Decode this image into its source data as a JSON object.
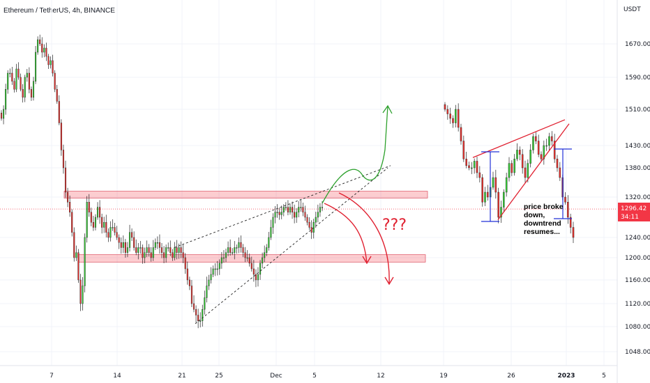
{
  "chart_data": {
    "type": "candlestick",
    "title": "Ethereum / TetherUS, 4h, BINANCE",
    "y_unit": "USDT",
    "y_ticks": [
      1048,
      1080,
      1120,
      1160,
      1200,
      1240,
      1320,
      1380,
      1430,
      1510,
      1590,
      1670
    ],
    "y_tick_labels": [
      "1048.00",
      "1080.00",
      "1120.00",
      "1160.00",
      "1200.00",
      "1240.00",
      "1320.00",
      "1380.00",
      "1430.00",
      "1510.00",
      "1590.00",
      "1670.00"
    ],
    "x_tick_labels": [
      "7",
      "14",
      "21",
      "25",
      "Dec",
      "5",
      "12",
      "19",
      "26",
      "2023",
      "5"
    ],
    "current_price": "1296.42",
    "countdown": "34:11",
    "annotations": {
      "question": "???",
      "note_lines": [
        "price broke",
        "down,",
        "downtrend",
        "resumes..."
      ]
    },
    "zones": [
      {
        "name": "resistance-zone",
        "from": 1318,
        "to": 1332
      },
      {
        "name": "support-zone",
        "from": 1192,
        "to": 1206
      }
    ],
    "left_close_path": [
      1490,
      1510,
      1560,
      1600,
      1600,
      1580,
      1560,
      1610,
      1590,
      1560,
      1540,
      1590,
      1600,
      1560,
      1540,
      1580,
      1650,
      1680,
      1670,
      1650,
      1660,
      1640,
      1620,
      1630,
      1600,
      1560,
      1530,
      1480,
      1420,
      1380,
      1330,
      1310,
      1290,
      1250,
      1200,
      1210,
      1160,
      1120,
      1150,
      1240,
      1310,
      1290,
      1270,
      1260,
      1280,
      1300,
      1280,
      1260,
      1270,
      1250,
      1240,
      1260,
      1260,
      1250,
      1240,
      1230,
      1220,
      1230,
      1210,
      1220,
      1250,
      1240,
      1220,
      1210,
      1220,
      1220,
      1200,
      1210,
      1220,
      1210,
      1200,
      1220,
      1230,
      1230,
      1220,
      1210,
      1200,
      1220,
      1220,
      1210,
      1200,
      1220,
      1210,
      1220,
      1210,
      1200,
      1180,
      1160,
      1150,
      1120,
      1110,
      1100,
      1090,
      1090,
      1110,
      1130,
      1150,
      1160,
      1170,
      1180,
      1180,
      1180,
      1190,
      1200,
      1200,
      1210,
      1220,
      1210,
      1210,
      1220,
      1220,
      1230,
      1220,
      1210,
      1200,
      1200,
      1190,
      1180,
      1170,
      1160,
      1170,
      1190,
      1200,
      1210,
      1220,
      1240,
      1260,
      1280,
      1290,
      1290,
      1285,
      1290,
      1300,
      1300,
      1290,
      1300,
      1290,
      1280,
      1290,
      1300,
      1300,
      1290,
      1280,
      1270,
      1260,
      1250,
      1270,
      1280,
      1290,
      1300,
      1300
    ],
    "right_close_path": [
      1510,
      1500,
      1490,
      1480,
      1510,
      1470,
      1440,
      1400,
      1385,
      1380,
      1380,
      1395,
      1370,
      1360,
      1310,
      1330,
      1320,
      1340,
      1360,
      1330,
      1280,
      1300,
      1330,
      1360,
      1390,
      1370,
      1400,
      1420,
      1410,
      1380,
      1360,
      1390,
      1420,
      1450,
      1440,
      1410,
      1400,
      1430,
      1430,
      1450,
      1440,
      1400,
      1380,
      1360,
      1320,
      1310,
      1280,
      1260,
      1240
    ]
  }
}
